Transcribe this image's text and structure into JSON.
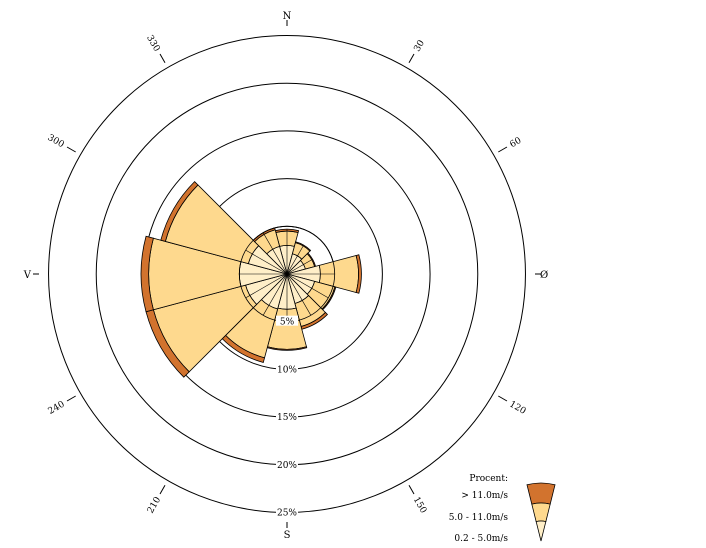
{
  "chart_data": {
    "type": "windrose",
    "title": "",
    "directions": {
      "N": "N",
      "E": "Ø",
      "S": "S",
      "W": "V"
    },
    "angle_labels": [
      {
        "deg": 30,
        "text": "30"
      },
      {
        "deg": 60,
        "text": "60"
      },
      {
        "deg": 120,
        "text": "120"
      },
      {
        "deg": 150,
        "text": "150"
      },
      {
        "deg": 210,
        "text": "210"
      },
      {
        "deg": 240,
        "text": "240"
      },
      {
        "deg": 300,
        "text": "300"
      },
      {
        "deg": 330,
        "text": "330"
      }
    ],
    "radial_rings": [
      {
        "value": 5,
        "text": "5%"
      },
      {
        "value": 10,
        "text": "10%"
      },
      {
        "value": 15,
        "text": "15%"
      },
      {
        "value": 20,
        "text": "20%"
      },
      {
        "value": 25,
        "text": "25%"
      }
    ],
    "rmax": 26,
    "sector_width_deg": 30,
    "sectors": [
      {
        "deg": 0,
        "bands": [
          3.0,
          1.5,
          0.2
        ]
      },
      {
        "deg": 30,
        "bands": [
          2.2,
          1.2,
          0.1
        ]
      },
      {
        "deg": 60,
        "bands": [
          2.0,
          1.0,
          0.1
        ]
      },
      {
        "deg": 90,
        "bands": [
          3.5,
          4.0,
          0.3
        ]
      },
      {
        "deg": 120,
        "bands": [
          3.0,
          2.2,
          0.1
        ]
      },
      {
        "deg": 150,
        "bands": [
          3.2,
          2.5,
          0.3
        ]
      },
      {
        "deg": 180,
        "bands": [
          3.7,
          4.2,
          0.1
        ]
      },
      {
        "deg": 210,
        "bands": [
          3.8,
          5.3,
          0.5
        ]
      },
      {
        "deg": 240,
        "bands": [
          4.5,
          10.0,
          0.8
        ]
      },
      {
        "deg": 270,
        "bands": [
          5.0,
          9.5,
          0.8
        ]
      },
      {
        "deg": 300,
        "bands": [
          4.2,
          9.0,
          0.5
        ]
      },
      {
        "deg": 330,
        "bands": [
          3.0,
          1.8,
          0.2
        ]
      }
    ],
    "legend": {
      "title": "Procent:",
      "placement": "bottom-right",
      "entries": [
        {
          "label": "> 11.0m/s",
          "color": "#d2732e"
        },
        {
          "label": "5.0 - 11.0m/s",
          "color": "#fed98e"
        },
        {
          "label": "0.2 - 5.0m/s",
          "color": "#ffefc8"
        }
      ]
    },
    "band_colors": [
      "#ffefc8",
      "#fed98e",
      "#d2732e"
    ]
  }
}
